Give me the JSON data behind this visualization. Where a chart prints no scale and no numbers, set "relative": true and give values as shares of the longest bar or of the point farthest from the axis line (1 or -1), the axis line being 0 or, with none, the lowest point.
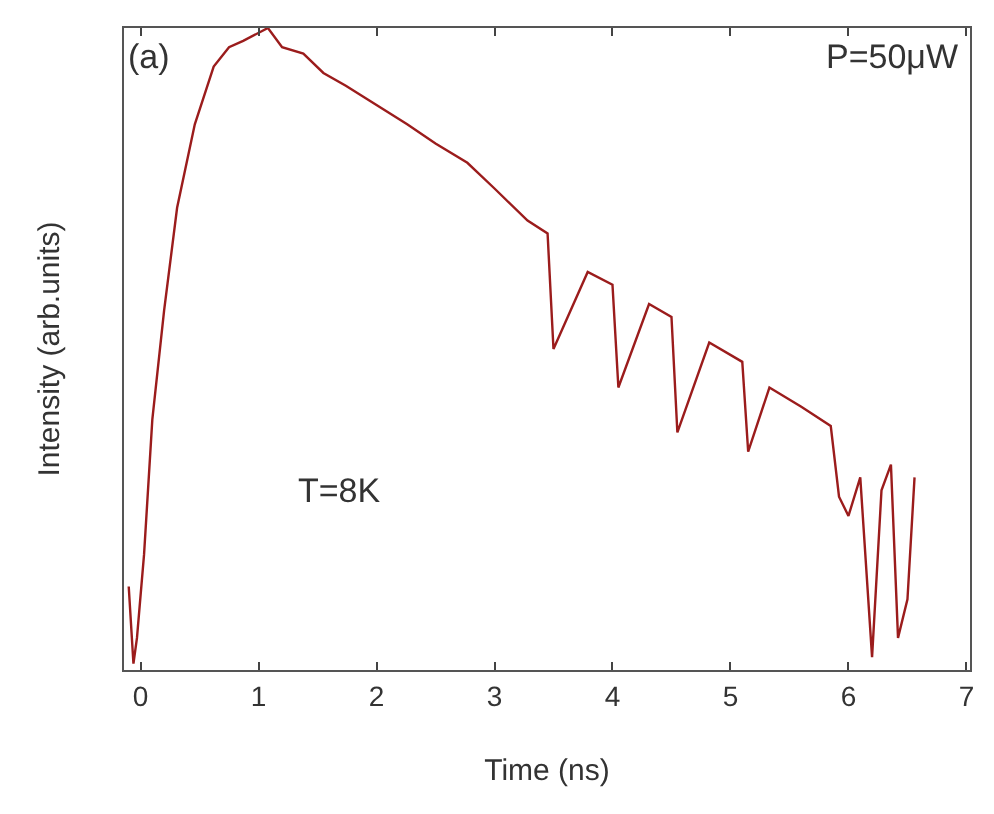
{
  "chart_data": {
    "type": "line",
    "xlabel": "Time (ns)",
    "ylabel": "Intensity (arb.units)",
    "relative": true,
    "annotations": [
      "(a)",
      "P=50μW",
      "T=8K"
    ],
    "xlim": [
      -0.14,
      7.03
    ],
    "xticks": [
      0,
      1,
      2,
      3,
      4,
      5,
      6,
      7
    ],
    "grid": false,
    "marker": "none",
    "line_style": "solid",
    "series": [
      {
        "color": "#9b1c1c",
        "x": [
          -0.1,
          -0.06,
          -0.03,
          0.03,
          0.1,
          0.2,
          0.31,
          0.46,
          0.62,
          0.75,
          0.87,
          1.08,
          1.2,
          1.38,
          1.55,
          1.74,
          2.0,
          2.26,
          2.5,
          2.77,
          3.0,
          3.28,
          3.45,
          3.5,
          3.79,
          4.0,
          4.05,
          4.31,
          4.5,
          4.55,
          4.82,
          5.1,
          5.15,
          5.33,
          5.6,
          5.85,
          5.92,
          6.0,
          6.1,
          6.2,
          6.28,
          6.36,
          6.42,
          6.5,
          6.56
        ],
        "values": [
          0.13,
          0.01,
          0.05,
          0.18,
          0.39,
          0.56,
          0.72,
          0.85,
          0.94,
          0.97,
          0.98,
          1,
          0.97,
          0.96,
          0.93,
          0.91,
          0.88,
          0.85,
          0.82,
          0.79,
          0.75,
          0.7,
          0.68,
          0.5,
          0.62,
          0.6,
          0.44,
          0.57,
          0.55,
          0.37,
          0.51,
          0.48,
          0.34,
          0.44,
          0.41,
          0.38,
          0.27,
          0.24,
          0.3,
          0.02,
          0.28,
          0.32,
          0.05,
          0.11,
          0.3
        ]
      }
    ]
  }
}
